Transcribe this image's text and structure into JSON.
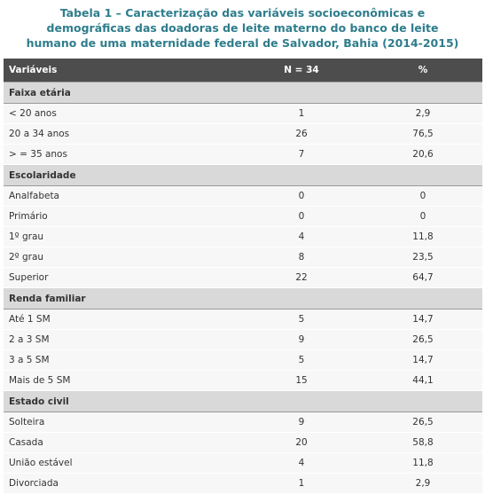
{
  "title": [
    "Tabela 1 – Caracterização das variáveis socioeconômicas e",
    "demográficas das doadoras de leite materno do banco de leite",
    "humano de uma maternidade federal de Salvador, Bahia (2014-2015)"
  ],
  "table": {
    "headers": [
      "Variáveis",
      "N = 34",
      "%"
    ],
    "sections": [
      {
        "label": "Faixa etária",
        "rows": [
          [
            "< 20 anos",
            "1",
            "2,9"
          ],
          [
            "20 a 34 anos",
            "26",
            "76,5"
          ],
          [
            "> = 35 anos",
            "7",
            "20,6"
          ]
        ]
      },
      {
        "label": "Escolaridade",
        "rows": [
          [
            "Analfabeta",
            "0",
            "0"
          ],
          [
            "Primário",
            "0",
            "0"
          ],
          [
            "1º grau",
            "4",
            "11,8"
          ],
          [
            "2º grau",
            "8",
            "23,5"
          ],
          [
            "Superior",
            "22",
            "64,7"
          ]
        ]
      },
      {
        "label": "Renda familiar",
        "rows": [
          [
            "Até 1 SM",
            "5",
            "14,7"
          ],
          [
            "2 a 3 SM",
            "9",
            "26,5"
          ],
          [
            "3 a 5 SM",
            "5",
            "14,7"
          ],
          [
            "Mais de 5 SM",
            "15",
            "44,1"
          ]
        ]
      },
      {
        "label": "Estado civil",
        "rows": [
          [
            "Solteira",
            "9",
            "26,5"
          ],
          [
            "Casada",
            "20",
            "58,8"
          ],
          [
            "União estável",
            "4",
            "11,8"
          ],
          [
            "Divorciada",
            "1",
            "2,9"
          ]
        ]
      }
    ]
  }
}
